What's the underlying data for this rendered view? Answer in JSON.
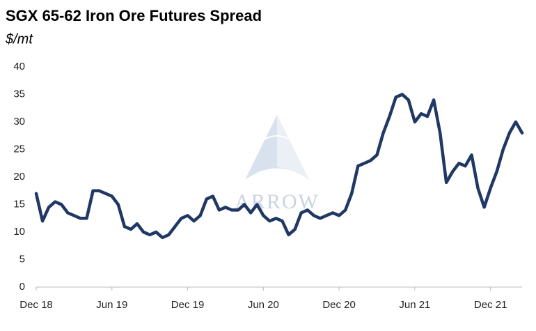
{
  "chart_data": {
    "type": "line",
    "title": "SGX 65-62 Iron Ore Futures Spread",
    "subtitle": "$/mt",
    "watermark": "ARROW",
    "categories": [
      "Dec 18",
      null,
      null,
      null,
      null,
      null,
      null,
      null,
      null,
      null,
      null,
      null,
      "Jun 19",
      null,
      null,
      null,
      null,
      null,
      null,
      null,
      null,
      null,
      null,
      null,
      "Dec 19",
      null,
      null,
      null,
      null,
      null,
      null,
      null,
      null,
      null,
      null,
      null,
      "Jun 20",
      null,
      null,
      null,
      null,
      null,
      null,
      null,
      null,
      null,
      null,
      null,
      "Dec 20",
      null,
      null,
      null,
      null,
      null,
      null,
      null,
      null,
      null,
      null,
      null,
      "Jun 21",
      null,
      null,
      null,
      null,
      null,
      null,
      null,
      null,
      null,
      null,
      null,
      "Dec 21",
      null,
      null,
      null,
      null,
      null
    ],
    "values": [
      17,
      12,
      14.5,
      15.5,
      15,
      13.5,
      13,
      12.5,
      12.5,
      17.5,
      17.5,
      17,
      16.5,
      15,
      11,
      10.5,
      11.5,
      10,
      9.5,
      10,
      9,
      9.5,
      11,
      12.5,
      13,
      12,
      13,
      16,
      16.5,
      14,
      14.5,
      14,
      14,
      15,
      13.5,
      15,
      13,
      12,
      12.5,
      12,
      9.5,
      10.5,
      13.5,
      14,
      13,
      12.5,
      13,
      13.5,
      13,
      14,
      17,
      22,
      22.5,
      23,
      24,
      28,
      31,
      34.5,
      35,
      34,
      30,
      31.5,
      31,
      34,
      28,
      19,
      21,
      22.5,
      22,
      24,
      18,
      14.5,
      18,
      21,
      25,
      28,
      30,
      28
    ],
    "color": "#1f3864",
    "ylim": [
      0,
      40
    ],
    "yticks": [
      0,
      5,
      10,
      15,
      20,
      25,
      30,
      35,
      40
    ],
    "grid": false
  }
}
